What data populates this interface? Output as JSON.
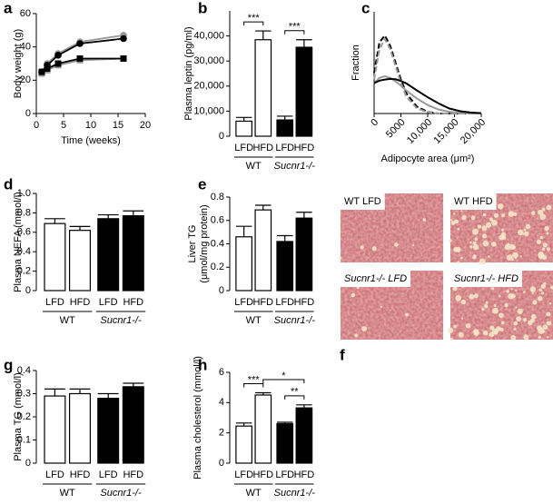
{
  "chart_data": [
    {
      "type": "line",
      "label": "a",
      "ylabel": "Body weight (g)",
      "xlabel": "Time (weeks)",
      "x": [
        1,
        2,
        4,
        8,
        16
      ],
      "xlim": [
        0,
        20
      ],
      "xticks": [
        0,
        5,
        10,
        15,
        20
      ],
      "ylim": [
        0,
        60
      ],
      "yticks": [
        0,
        20,
        40,
        60
      ],
      "series": [
        {
          "color": "#999999",
          "marker": "circle",
          "values": [
            25,
            30,
            36,
            43,
            47
          ]
        },
        {
          "color": "#000000",
          "marker": "circle",
          "values": [
            25,
            29,
            35,
            42,
            45
          ]
        },
        {
          "color": "#999999",
          "marker": "square",
          "values": [
            24,
            26,
            29,
            32,
            33
          ]
        },
        {
          "color": "#000000",
          "marker": "square",
          "values": [
            25,
            27,
            30,
            33,
            33
          ]
        }
      ]
    },
    {
      "type": "bar",
      "label": "b",
      "ylabel": "Plasma leptin (pg/ml)",
      "categories": [
        "LFD",
        "HFD",
        "LFD",
        "HFD"
      ],
      "groups": [
        "WT",
        "Sucnr1-/-"
      ],
      "values": [
        6000,
        38500,
        6500,
        35500
      ],
      "errors": [
        1500,
        3500,
        1500,
        3000
      ],
      "colors": [
        "#ffffff",
        "#ffffff",
        "#000000",
        "#000000"
      ],
      "ylim": [
        0,
        50000
      ],
      "yticks": [
        0,
        {
          "value": 10000,
          "label": "10,000"
        },
        {
          "value": 20000,
          "label": "20,000"
        },
        {
          "value": 30000,
          "label": "30,000"
        },
        {
          "value": 40000,
          "label": "40,000"
        }
      ],
      "significance": [
        {
          "from": 0,
          "to": 1,
          "label": "***"
        },
        {
          "from": 2,
          "to": 3,
          "label": "***"
        }
      ]
    },
    {
      "type": "line",
      "label": "c",
      "ylabel": "Fraction",
      "xlabel": "Adipocyte area (μm²)",
      "x": [
        0,
        1000,
        2000,
        3000,
        4000,
        5000,
        6000,
        8000,
        10000,
        12000,
        14000,
        16000,
        18000,
        20000
      ],
      "xlim": [
        0,
        20000
      ],
      "xticks": [
        0,
        5000,
        {
          "value": 10000,
          "label": "10,000"
        },
        {
          "value": 15000,
          "label": "15,000"
        },
        {
          "value": 20000,
          "label": "20,000"
        }
      ],
      "ylim": [
        0,
        0.3
      ],
      "series": [
        {
          "color": "#000000",
          "dash": true,
          "values": [
            0.12,
            0.21,
            0.23,
            0.2,
            0.15,
            0.1,
            0.06,
            0.02,
            0.005,
            0,
            0,
            0,
            0,
            0
          ]
        },
        {
          "color": "#999999",
          "dash": true,
          "values": [
            0.1,
            0.19,
            0.22,
            0.19,
            0.14,
            0.09,
            0.05,
            0.015,
            0.004,
            0,
            0,
            0,
            0,
            0
          ]
        },
        {
          "color": "#999999",
          "dash": false,
          "values": [
            0.09,
            0.105,
            0.11,
            0.105,
            0.095,
            0.082,
            0.068,
            0.044,
            0.025,
            0.012,
            0.005,
            0.002,
            0.001,
            0
          ]
        },
        {
          "color": "#000000",
          "dash": false,
          "values": [
            0.09,
            0.097,
            0.1,
            0.102,
            0.101,
            0.096,
            0.089,
            0.068,
            0.048,
            0.03,
            0.015,
            0.007,
            0.003,
            0.001
          ]
        }
      ]
    },
    {
      "type": "bar",
      "label": "d",
      "ylabel": "Plasma NEFA (mmol/l)",
      "categories": [
        "LFD",
        "HFD",
        "LFD",
        "HFD"
      ],
      "groups": [
        "WT",
        "Sucnr1-/-"
      ],
      "values": [
        0.69,
        0.62,
        0.74,
        0.77
      ],
      "errors": [
        0.05,
        0.04,
        0.04,
        0.05
      ],
      "colors": [
        "#ffffff",
        "#ffffff",
        "#000000",
        "#000000"
      ],
      "ylim": [
        0,
        1.0
      ],
      "yticks": [
        0,
        0.2,
        0.4,
        0.6,
        0.8,
        {
          "value": 1.0,
          "label": "1.0"
        }
      ],
      "significance": []
    },
    {
      "type": "bar",
      "label": "e",
      "ylabel": [
        "Liver TG",
        "(μmol/mg protein)"
      ],
      "categories": [
        "LFD",
        "HFD",
        "LFD",
        "HFD"
      ],
      "groups": [
        "WT",
        "Sucnr1-/-"
      ],
      "values": [
        0.46,
        0.69,
        0.42,
        0.62
      ],
      "errors": [
        0.09,
        0.04,
        0.05,
        0.05
      ],
      "colors": [
        "#ffffff",
        "#ffffff",
        "#000000",
        "#000000"
      ],
      "ylim": [
        0,
        0.8
      ],
      "yticks": [
        0,
        0.2,
        0.4,
        0.6,
        0.8
      ],
      "significance": []
    },
    {
      "type": "bar",
      "label": "g",
      "ylabel": "Plasma TG (mmol/l)",
      "categories": [
        "LFD",
        "HFD",
        "LFD",
        "HFD"
      ],
      "groups": [
        "WT",
        "Sucnr1-/-"
      ],
      "values": [
        0.29,
        0.3,
        0.28,
        0.33
      ],
      "errors": [
        0.03,
        0.02,
        0.02,
        0.015
      ],
      "colors": [
        "#ffffff",
        "#ffffff",
        "#000000",
        "#000000"
      ],
      "ylim": [
        0,
        0.4
      ],
      "yticks": [
        0,
        0.1,
        0.2,
        0.3,
        0.4
      ],
      "significance": []
    },
    {
      "type": "bar",
      "label": "h",
      "ylabel": "Plasma cholesterol (mmol/l)",
      "categories": [
        "LFD",
        "HFD",
        "LFD",
        "HFD"
      ],
      "groups": [
        "WT",
        "Sucnr1-/-"
      ],
      "values": [
        2.45,
        4.5,
        2.6,
        3.65
      ],
      "errors": [
        0.2,
        0.15,
        0.1,
        0.2
      ],
      "colors": [
        "#ffffff",
        "#ffffff",
        "#000000",
        "#000000"
      ],
      "ylim": [
        0,
        6
      ],
      "yticks": [
        0,
        2,
        4,
        6
      ],
      "significance": [
        {
          "from": 0,
          "to": 1,
          "label": "***"
        },
        {
          "from": 2,
          "to": 3,
          "label": "**"
        },
        {
          "from": 1,
          "to": 3,
          "label": "*"
        }
      ]
    }
  ],
  "histology": {
    "label": "f",
    "images": [
      "WT LFD",
      "WT HFD",
      "Sucnr1-/- LFD",
      "Sucnr1-/- HFD"
    ]
  }
}
